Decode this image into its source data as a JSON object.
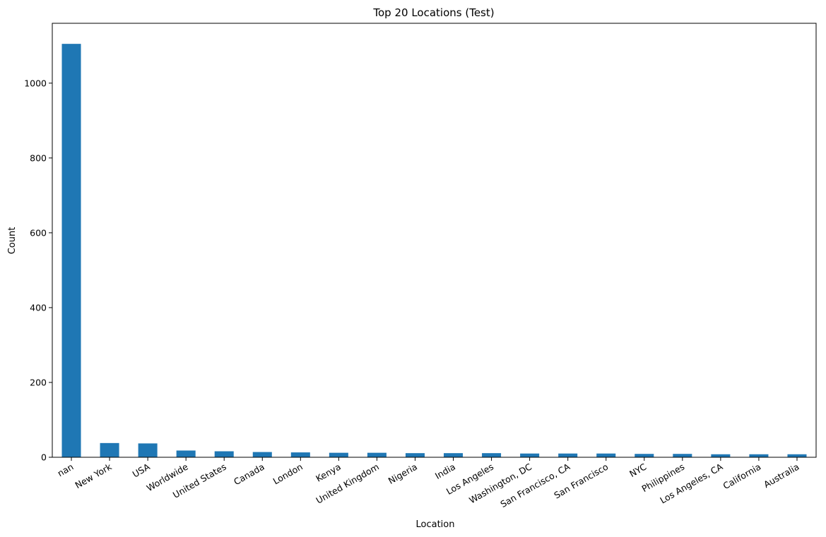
{
  "chart_data": {
    "type": "bar",
    "title": "Top 20 Locations (Test)",
    "xlabel": "Location",
    "ylabel": "Count",
    "ylim": [
      0,
      1160
    ],
    "yticks": [
      0,
      200,
      400,
      600,
      800,
      1000
    ],
    "grid": false,
    "legend": "none",
    "bar_color": "#1f77b4",
    "categories": [
      "nan",
      "New York",
      "USA",
      "Worldwide",
      "United States",
      "Canada",
      "London",
      "Kenya",
      "United Kingdom",
      "Nigeria",
      "India",
      "Los Angeles",
      "Washington, DC",
      "San Francisco, CA",
      "San Francisco",
      "NYC",
      "Philippines",
      "Los Angeles, CA",
      "California",
      "Australia"
    ],
    "values": [
      1105,
      38,
      37,
      18,
      16,
      14,
      13,
      12,
      12,
      11,
      11,
      11,
      10,
      10,
      10,
      9,
      9,
      8,
      8,
      8
    ]
  }
}
